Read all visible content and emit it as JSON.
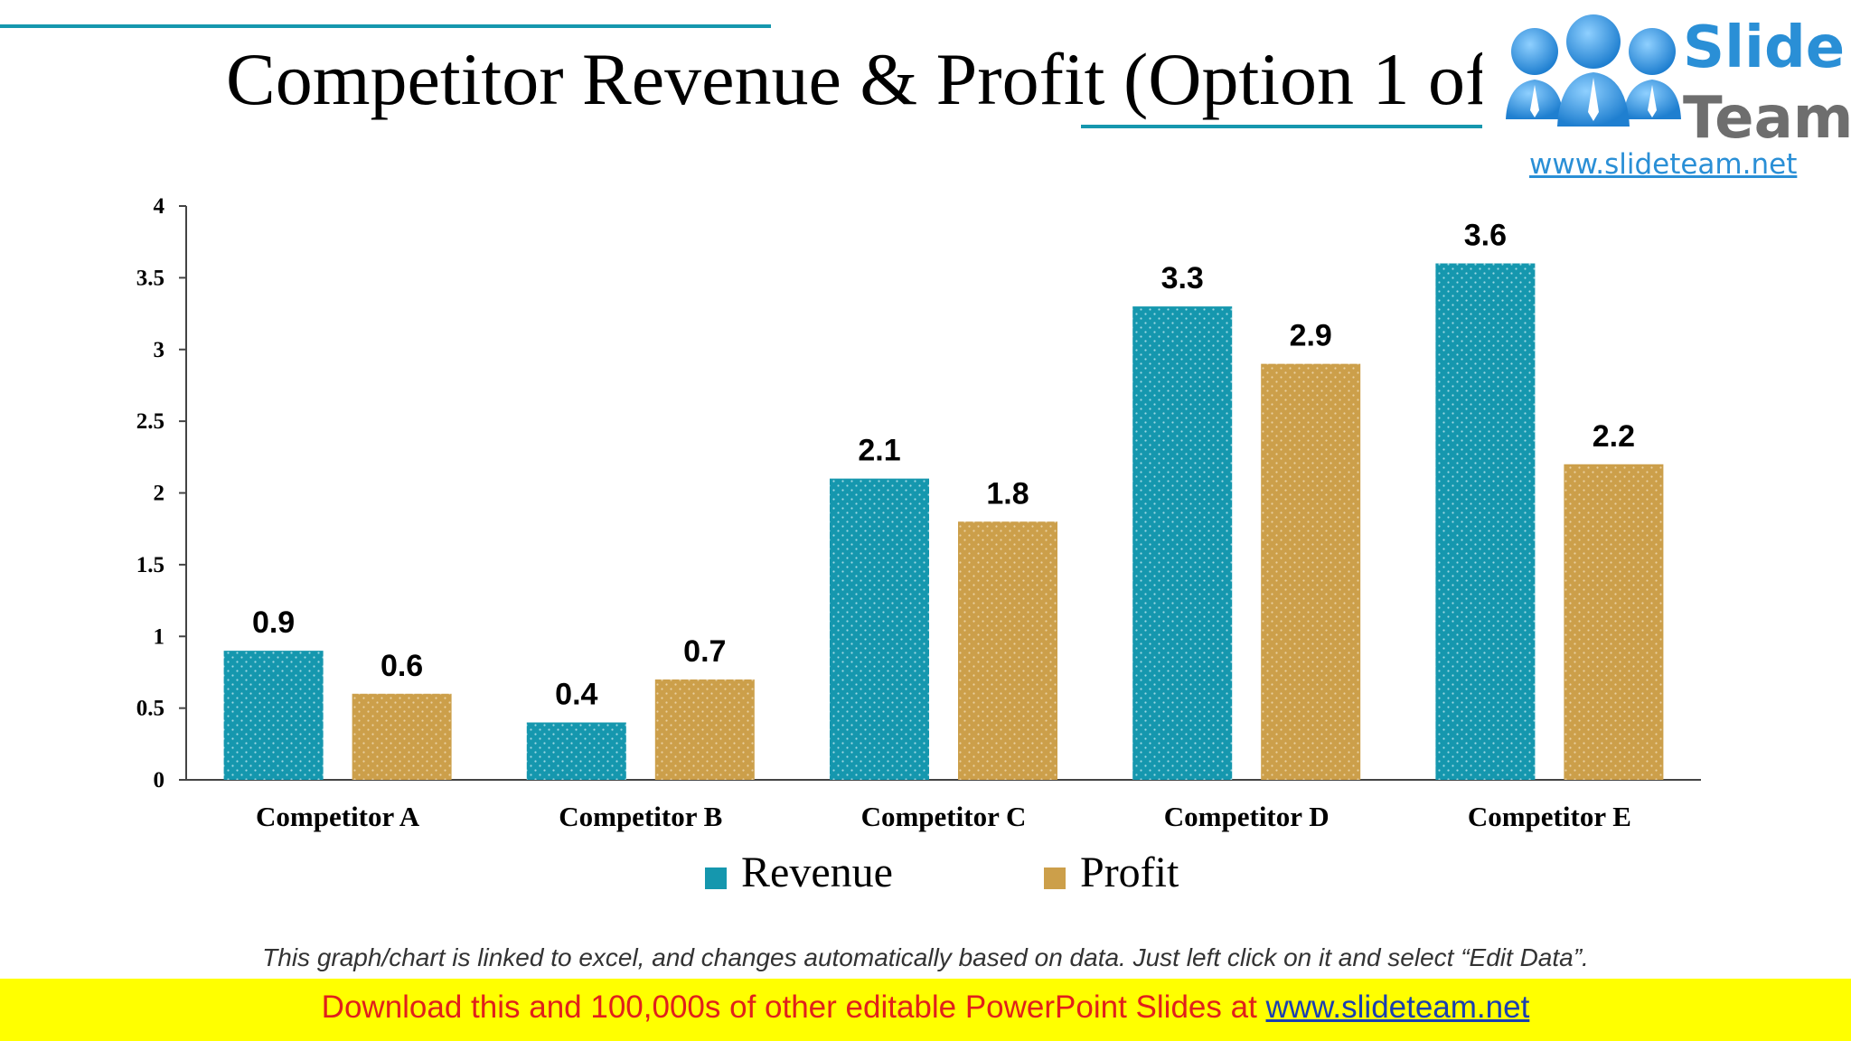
{
  "title": "Competitor Revenue & Profit (Option 1 of 2)",
  "logo": {
    "word1": "Slide",
    "word2": "Team",
    "url": "www.slideteam.net"
  },
  "colors": {
    "revenue": "#1597ae",
    "profit": "#cc9f4a",
    "accent_line": "#1597ae",
    "banner_bg": "#ffff00",
    "banner_text": "#e0201b"
  },
  "chart_data": {
    "type": "bar",
    "categories": [
      "Competitor A",
      "Competitor B",
      "Competitor C",
      "Competitor D",
      "Competitor E"
    ],
    "series": [
      {
        "name": "Revenue",
        "values": [
          0.9,
          0.4,
          2.1,
          3.3,
          3.6
        ]
      },
      {
        "name": "Profit",
        "values": [
          0.6,
          0.7,
          1.8,
          2.9,
          2.2
        ]
      }
    ],
    "y_ticks": [
      "0",
      "0.5",
      "1",
      "1.5",
      "2",
      "2.5",
      "3",
      "3.5",
      "4"
    ],
    "ylim": [
      0,
      4
    ],
    "grid": false,
    "legend_position": "bottom",
    "data_labels": true
  },
  "legend": {
    "revenue": "Revenue",
    "profit": "Profit"
  },
  "footnote": "This graph/chart is linked to excel, and changes automatically based on data. Just left click on it and select “Edit Data”.",
  "banner": {
    "text": "Download this and 100,000s of other editable PowerPoint Slides at ",
    "link": "www.slideteam.net"
  }
}
